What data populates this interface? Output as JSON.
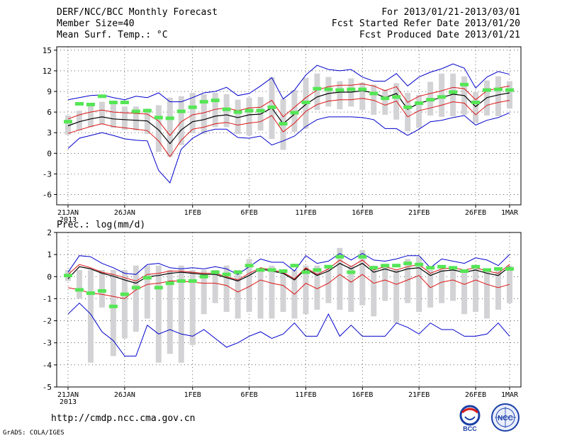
{
  "header": {
    "left": [
      "DERF/NCC/BCC Monthly Forecast",
      "Member Size=40",
      "Mean Surf. Temp.: °C"
    ],
    "right": [
      "For 2013/01/21-2013/03/01",
      "Fcst Started Refer Date 2013/01/20",
      "Fcst Produced Date 2013/01/21"
    ]
  },
  "footer": {
    "url": "http://cmdp.ncc.cma.gov.cn",
    "credit": "GrADS: COLA/IGES"
  },
  "logos": {
    "bcc": "BCC",
    "ncc": "NCC"
  },
  "colors": {
    "box": "#d3d3d6",
    "median": "#55e655",
    "mean": "#000000",
    "sd": "#dc1414",
    "extreme": "#0000cc"
  },
  "chart_data": [
    {
      "type": "line",
      "title": "Mean Surf. Temp.: °C",
      "xlabel": "",
      "ylabel": "",
      "ylim": [
        -7.5,
        15.5
      ],
      "yticks": [
        -6,
        -3,
        0,
        3,
        6,
        9,
        12,
        15
      ],
      "xticks": [
        {
          "label": "21JAN",
          "index": 0,
          "year": "2013"
        },
        {
          "label": "26JAN",
          "index": 5
        },
        {
          "label": "1FEB",
          "index": 11
        },
        {
          "label": "6FEB",
          "index": 16
        },
        {
          "label": "11FEB",
          "index": 21
        },
        {
          "label": "16FEB",
          "index": 26
        },
        {
          "label": "21FEB",
          "index": 31
        },
        {
          "label": "26FEB",
          "index": 36
        },
        {
          "label": "1MAR",
          "index": 39
        }
      ],
      "x_count": 40,
      "series": [
        {
          "name": "mean",
          "values": [
            4,
            4.6,
            5,
            5.3,
            5,
            4.9,
            4.8,
            4.7,
            3.4,
            1.4,
            3.4,
            4.6,
            4.9,
            5.4,
            5.6,
            5.2,
            5.6,
            5.7,
            6.6,
            4.3,
            5.7,
            7.1,
            8.2,
            8.7,
            8.9,
            8.9,
            9.1,
            8.8,
            8.1,
            8.7,
            6.4,
            7.3,
            7.7,
            8.1,
            8.6,
            8.4,
            6.8,
            8.1,
            8.5,
            8.8
          ]
        },
        {
          "name": "mean+sd",
          "values": [
            5,
            5.6,
            6,
            6.3,
            6,
            5.9,
            5.8,
            5.7,
            4.7,
            2.6,
            4.6,
            5.6,
            5.9,
            6.4,
            6.6,
            6.2,
            6.6,
            6.7,
            7.7,
            5.3,
            6.7,
            8.1,
            9.2,
            9.7,
            9.9,
            9.9,
            10.1,
            9.8,
            9.1,
            9.7,
            7.4,
            8.3,
            8.7,
            9.1,
            9.6,
            9.4,
            7.8,
            9.1,
            9.5,
            9.8
          ]
        },
        {
          "name": "mean-sd",
          "values": [
            2.9,
            3.4,
            3.9,
            4.3,
            3.9,
            3.7,
            3.5,
            3.3,
            1.8,
            -0.5,
            1.9,
            3.5,
            3.8,
            4.3,
            4.5,
            4.1,
            4.4,
            4.6,
            5.5,
            3.1,
            4.4,
            6.1,
            7.1,
            7.6,
            7.8,
            7.8,
            8,
            7.7,
            7,
            7.6,
            5.3,
            6.2,
            6.6,
            7,
            7.5,
            7.3,
            5.6,
            7,
            7.4,
            7.7
          ]
        },
        {
          "name": "max",
          "values": [
            7.8,
            8.1,
            8.4,
            8.5,
            8.1,
            7.8,
            8.3,
            8.1,
            8.8,
            7.5,
            7.5,
            8.1,
            8.8,
            9,
            9.6,
            8.4,
            8.7,
            9.8,
            11,
            7.9,
            9.2,
            11.4,
            12.8,
            12.2,
            12,
            12.2,
            11.1,
            10.5,
            10.5,
            11.6,
            9.8,
            11.1,
            11.8,
            12.3,
            13,
            12.4,
            9.5,
            11.1,
            11.9,
            11.5
          ]
        },
        {
          "name": "min",
          "values": [
            0.7,
            2.2,
            2.6,
            3,
            2.6,
            2.1,
            1.9,
            1.8,
            -2.5,
            -4.3,
            0.6,
            2.2,
            3.1,
            3.5,
            3.5,
            2.3,
            2.2,
            2.5,
            1.2,
            1.8,
            2.5,
            3.9,
            4.9,
            5.3,
            5.3,
            5.3,
            5.2,
            4.9,
            3.6,
            3.6,
            2.6,
            3.5,
            4.6,
            4.8,
            5.2,
            5.5,
            4.1,
            4.8,
            5.2,
            5.9
          ]
        },
        {
          "name": "median",
          "values": [
            4.6,
            7.2,
            7.1,
            8.3,
            7.4,
            7.4,
            6.1,
            6.2,
            5.2,
            5.1,
            6.1,
            6.7,
            7.5,
            7.7,
            6.4,
            6,
            6.2,
            6.2,
            6.7,
            4.3,
            5.9,
            7.4,
            9.4,
            9.3,
            9.2,
            9.3,
            9.3,
            8.7,
            8,
            8.2,
            6.7,
            7.3,
            7.8,
            8.2,
            8.9,
            10,
            7.4,
            9.2,
            9.3,
            9.2
          ]
        },
        {
          "name": "box_low",
          "values": [
            2.7,
            3.3,
            3.8,
            4.2,
            3.7,
            3.4,
            3.3,
            2.8,
            0.2,
            -0.5,
            1.2,
            2.9,
            2.8,
            3.8,
            3.8,
            2.8,
            2.6,
            3.3,
            2.1,
            0.5,
            3.1,
            3.6,
            6.3,
            6.8,
            6.4,
            6.8,
            6.3,
            5.6,
            5.6,
            4.9,
            3.2,
            3.7,
            5.5,
            5.3,
            5.4,
            5.6,
            4.4,
            5.5,
            5.4,
            6.5
          ]
        },
        {
          "name": "box_high",
          "values": [
            5.5,
            6.2,
            7.3,
            7.5,
            7.3,
            6.8,
            6.8,
            6.5,
            7,
            8.1,
            8.3,
            8.8,
            8.6,
            8.8,
            8.6,
            7.8,
            8.1,
            8.2,
            11.1,
            7.9,
            9.2,
            11,
            11.6,
            11.1,
            10.5,
            10.9,
            10.3,
            10,
            9.3,
            10.2,
            8.8,
            8.5,
            10.4,
            11.6,
            11.6,
            11.2,
            8.9,
            10.6,
            11.2,
            10.5
          ]
        }
      ]
    },
    {
      "type": "line",
      "title": "Prec.: log(mm/d)",
      "xlabel": "",
      "ylabel": "",
      "ylim": [
        -5,
        2
      ],
      "yticks": [
        -5,
        -4,
        -3,
        -2,
        -1,
        0,
        1,
        2
      ],
      "xticks": [
        {
          "label": "21JAN",
          "index": 0,
          "year": "2013"
        },
        {
          "label": "26JAN",
          "index": 5
        },
        {
          "label": "1FEB",
          "index": 11
        },
        {
          "label": "6FEB",
          "index": 16
        },
        {
          "label": "11FEB",
          "index": 21
        },
        {
          "label": "16FEB",
          "index": 26
        },
        {
          "label": "21FEB",
          "index": 31
        },
        {
          "label": "26FEB",
          "index": 36
        },
        {
          "label": "1MAR",
          "index": 39
        }
      ],
      "x_count": 40,
      "series": [
        {
          "name": "mean",
          "values": [
            -0.1,
            0.45,
            0.35,
            0.15,
            0.02,
            -0.15,
            -0.3,
            0,
            0.05,
            0.15,
            0.2,
            0.15,
            0.1,
            0.1,
            -0.05,
            -0.2,
            0.05,
            0.35,
            0.25,
            0.15,
            -0.15,
            0.35,
            0.05,
            0.25,
            0.6,
            0.35,
            0.6,
            0.2,
            0.35,
            0.2,
            0.35,
            0.4,
            0.05,
            0.25,
            0.3,
            0.2,
            0.3,
            0.15,
            0.05,
            0.45
          ]
        },
        {
          "name": "mean+sd",
          "values": [
            0.1,
            0.55,
            0.4,
            0.2,
            0.1,
            -0.05,
            -0.2,
            0.1,
            0.15,
            0.25,
            0.25,
            0.2,
            0.15,
            0.15,
            0,
            -0.15,
            0.15,
            0.4,
            0.3,
            0.2,
            -0.1,
            0.4,
            0.1,
            0.35,
            0.75,
            0.45,
            0.75,
            0.3,
            0.45,
            0.3,
            0.45,
            0.55,
            0.15,
            0.35,
            0.4,
            0.3,
            0.4,
            0.25,
            0.15,
            0.55
          ]
        },
        {
          "name": "mean-sd",
          "values": [
            -0.5,
            -0.6,
            -0.75,
            -0.8,
            -0.9,
            -1,
            -0.6,
            -0.35,
            -0.3,
            -0.2,
            -0.2,
            -0.25,
            -0.3,
            -0.3,
            -0.4,
            -0.7,
            -0.45,
            -0.15,
            -0.3,
            -0.4,
            -0.8,
            -0.3,
            -0.55,
            -0.3,
            0.1,
            -0.25,
            0.1,
            -0.3,
            -0.15,
            -0.35,
            -0.15,
            0.05,
            -0.5,
            -0.25,
            -0.15,
            -0.35,
            -0.15,
            -0.35,
            -0.5,
            -0.35
          ]
        },
        {
          "name": "max",
          "values": [
            0.2,
            0.95,
            0.9,
            0.6,
            0.4,
            0.15,
            0.1,
            0.55,
            0.6,
            0.4,
            0.35,
            0.4,
            0.35,
            0.45,
            0.35,
            0.1,
            0.45,
            0.8,
            0.65,
            0.65,
            0.25,
            0.95,
            0.6,
            0.7,
            1.05,
            0.75,
            1.05,
            0.75,
            0.7,
            0.8,
            0.95,
            0.95,
            0.4,
            0.8,
            0.7,
            0.6,
            0.85,
            0.75,
            0.5,
            1
          ]
        },
        {
          "name": "min",
          "values": [
            -1.7,
            -1.2,
            -1.7,
            -2.5,
            -2.9,
            -3.6,
            -3.6,
            -2.2,
            -2.6,
            -2.4,
            -2.6,
            -2.7,
            -2.4,
            -2.8,
            -3.2,
            -3,
            -2.7,
            -2.5,
            -2.8,
            -2.6,
            -2.1,
            -2.7,
            -2.7,
            -1.7,
            -2.7,
            -2.2,
            -2.7,
            -2.7,
            -2.7,
            -2.1,
            -2.3,
            -2.6,
            -2.1,
            -2.4,
            -2.4,
            -2.7,
            -2.7,
            -2.6,
            -2.1,
            -2.7
          ]
        },
        {
          "name": "median",
          "values": [
            0.05,
            -0.6,
            -0.75,
            -0.65,
            -1.35,
            -0.8,
            -0.5,
            -0.05,
            -0.5,
            -0.3,
            -0.2,
            -0.2,
            0,
            0.2,
            0.1,
            0.2,
            0.5,
            0.3,
            0.3,
            0.25,
            0.5,
            0.2,
            0.3,
            0.45,
            0.9,
            0.2,
            0.9,
            0.4,
            0.5,
            0.5,
            0.6,
            0.55,
            0.4,
            0.45,
            0.4,
            0.25,
            0.45,
            0.3,
            0.35,
            0.35
          ]
        },
        {
          "name": "box_low",
          "values": [
            -0.2,
            -1,
            -3.9,
            -1.4,
            -3.6,
            -2.8,
            -2.5,
            -1.9,
            -3.9,
            -3.5,
            -3.9,
            -3.1,
            -1.7,
            -1.2,
            -1.6,
            -1.9,
            -1.6,
            -1.9,
            -1.9,
            -1.6,
            -1.9,
            -1.7,
            -1.5,
            -1.2,
            -1.5,
            -1.6,
            -1.3,
            -1.8,
            -1.1,
            -2.1,
            -1.2,
            -1.6,
            -1.4,
            -1.2,
            -1.1,
            -1.7,
            -1.6,
            -1.9,
            -1.5,
            -1.2
          ]
        },
        {
          "name": "box_high",
          "values": [
            0.3,
            0.3,
            0.3,
            0.3,
            0.3,
            0.3,
            0.5,
            0.5,
            0.5,
            0.3,
            0.5,
            0.3,
            0.3,
            0.3,
            0.5,
            0.3,
            0.8,
            0.3,
            0.5,
            0.3,
            0.3,
            0.5,
            0.5,
            0.5,
            1.3,
            0.5,
            1.2,
            0.5,
            0.5,
            0.3,
            0.8,
            0.9,
            0.3,
            0.3,
            0.3,
            0.3,
            0.5,
            0.3,
            0.3,
            0.5
          ]
        }
      ]
    }
  ]
}
